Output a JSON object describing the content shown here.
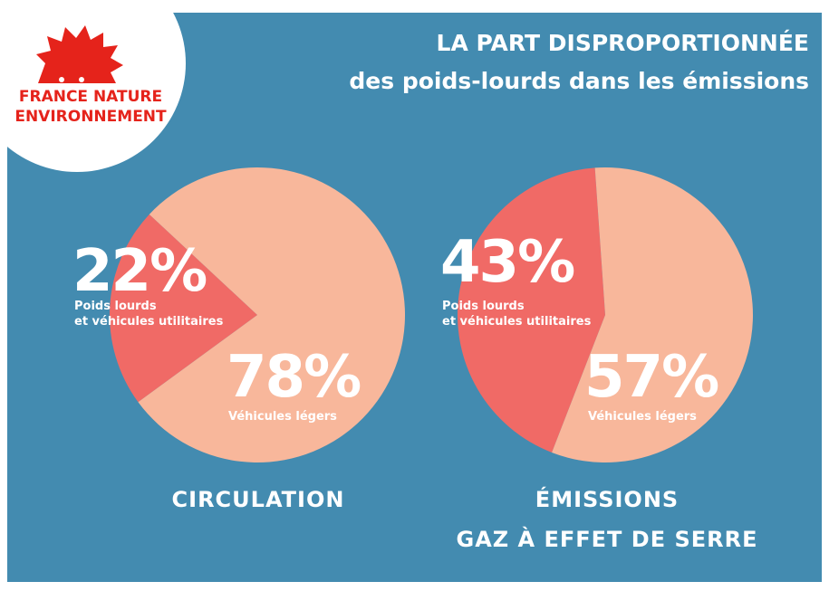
{
  "logo": {
    "lines": [
      "FRANCE NATURE",
      "ENVIRONNEMENT"
    ]
  },
  "title": {
    "line1": "LA PART DISPROPORTIONNÉE",
    "line2": "des poids-lourds dans les émissions"
  },
  "chart_data": [
    {
      "type": "pie",
      "title": "CIRCULATION",
      "categories": [
        "Poids lourds\net véhicules utilitaires",
        "Véhicules légers"
      ],
      "values": [
        22,
        78
      ],
      "value_labels": [
        "22%",
        "78%"
      ],
      "colors": [
        "#f06a66",
        "#f8b79b"
      ]
    },
    {
      "type": "pie",
      "title": "ÉMISSIONS\nGAZ À EFFET DE SERRE",
      "categories": [
        "Poids lourds\net véhicules utilitaires",
        "Véhicules légers"
      ],
      "values": [
        43,
        57
      ],
      "value_labels": [
        "43%",
        "57%"
      ],
      "colors": [
        "#f06a66",
        "#f8b79b"
      ]
    }
  ]
}
